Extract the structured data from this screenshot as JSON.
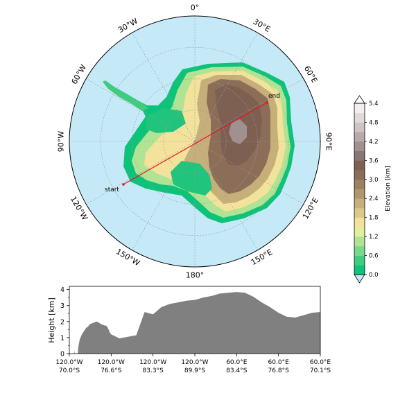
{
  "map": {
    "meridian_labels": [
      {
        "text": "0°",
        "lon": 0
      },
      {
        "text": "30°E",
        "lon": 30
      },
      {
        "text": "60°E",
        "lon": 60
      },
      {
        "text": "90°E",
        "lon": 90
      },
      {
        "text": "120°E",
        "lon": 120
      },
      {
        "text": "150°E",
        "lon": 150
      },
      {
        "text": "180°",
        "lon": 180
      },
      {
        "text": "150°W",
        "lon": -150
      },
      {
        "text": "120°W",
        "lon": -120
      },
      {
        "text": "90°W",
        "lon": -90
      },
      {
        "text": "60°W",
        "lon": -60
      },
      {
        "text": "30°W",
        "lon": -30
      }
    ],
    "transect": {
      "start_label": "start",
      "end_label": "end",
      "start": {
        "lon": -120.0,
        "lat": -70.0
      },
      "end": {
        "lon": 60.0,
        "lat": -70.1
      },
      "color": "#e8141a"
    },
    "ocean_color": "#c6e9f8"
  },
  "colorbar": {
    "label": "Elevation [km]",
    "ticks": [
      "0.0",
      "0.6",
      "1.2",
      "1.8",
      "2.4",
      "3.0",
      "3.6",
      "4.2",
      "4.8",
      "5.4"
    ],
    "colors": [
      "#0fc27a",
      "#40cc7e",
      "#7ad88a",
      "#b0e494",
      "#e0ee9e",
      "#f3e29c",
      "#dcc98a",
      "#c7af7a",
      "#b0966c",
      "#9c8061",
      "#8c6e58",
      "#7e6052",
      "#8a7672",
      "#a09090",
      "#b8aaaa",
      "#cfc4c4",
      "#e2dada",
      "#f2eeee"
    ],
    "under_color": "#c6e9f8",
    "over_color": "#ffffff"
  },
  "profile": {
    "ylabel": "Height [km]",
    "yticks": [
      "0",
      "1",
      "2",
      "3",
      "4"
    ],
    "ylim": [
      0,
      4.2
    ],
    "xtick_labels": [
      {
        "lon": "120.0°W",
        "lat": "70.0°S"
      },
      {
        "lon": "120.0°W",
        "lat": "76.6°S"
      },
      {
        "lon": "120.0°W",
        "lat": "83.3°S"
      },
      {
        "lon": "120.0°W",
        "lat": "89.9°S"
      },
      {
        "lon": "60.0°E",
        "lat": "83.4°S"
      },
      {
        "lon": "60.0°E",
        "lat": "76.8°S"
      },
      {
        "lon": "60.0°E",
        "lat": "70.1°S"
      }
    ],
    "fill_color": "#808080"
  },
  "chart_data": {
    "type": "area",
    "xlabel": "",
    "ylabel": "Height [km]",
    "ylim": [
      0,
      4.2
    ],
    "x": [
      0,
      0.05,
      0.1,
      0.12,
      0.13,
      0.135,
      0.14,
      0.145,
      0.15,
      0.17,
      0.2,
      0.22,
      0.25,
      0.3,
      0.35,
      0.4,
      0.45,
      0.5,
      0.55,
      0.6,
      0.65,
      0.7,
      0.75,
      0.8,
      0.85,
      0.88,
      0.9,
      0.92,
      0.94,
      0.96,
      1.0,
      1.2,
      1.4,
      1.6,
      1.8,
      2.0,
      2.2,
      2.4,
      2.6,
      2.8,
      3.0,
      3.2,
      3.4,
      3.6,
      3.8,
      4.0,
      4.2,
      4.4,
      4.6,
      4.8,
      5.0,
      5.2,
      5.4,
      5.6,
      5.8,
      6.0
    ],
    "values": [
      0,
      0,
      0,
      0,
      0.2,
      0,
      0,
      0,
      0,
      0,
      0,
      0.5,
      0.9,
      1.2,
      1.4,
      1.6,
      1.7,
      1.85,
      1.9,
      1.95,
      2.0,
      1.95,
      1.85,
      1.8,
      1.75,
      1.75,
      1.7,
      1.6,
      1.5,
      1.35,
      1.2,
      0.95,
      1.05,
      1.15,
      2.6,
      2.45,
      2.9,
      3.1,
      3.2,
      3.3,
      3.35,
      3.5,
      3.6,
      3.75,
      3.8,
      3.85,
      3.8,
      3.55,
      3.2,
      2.9,
      2.55,
      2.3,
      2.25,
      2.4,
      2.55,
      2.6
    ]
  }
}
